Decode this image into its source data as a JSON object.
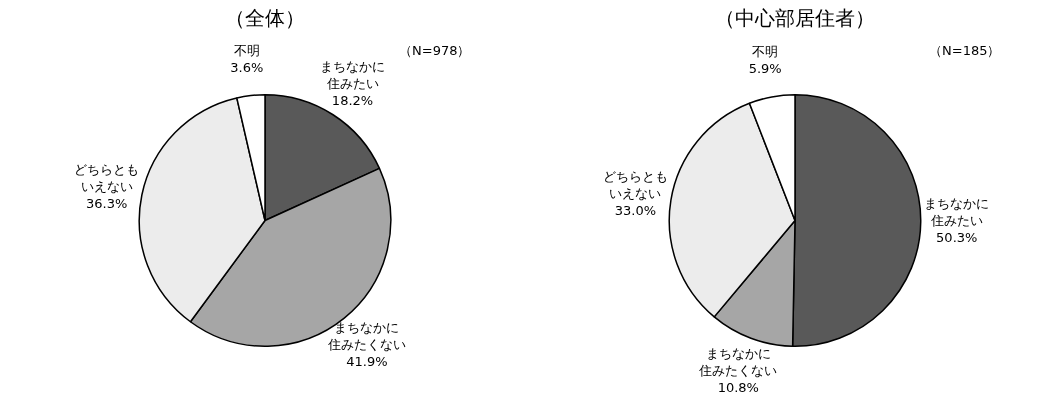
{
  "chart_data": [
    {
      "type": "pie",
      "title": "（全体）",
      "annotations": [
        "（N=978）"
      ],
      "categories": [
        "まちなかに住みたい",
        "まちなかに住みたくない",
        "どちらともいえない",
        "不明"
      ],
      "values": [
        18.2,
        41.9,
        36.3,
        3.6
      ],
      "value_labels": [
        "18.2%",
        "41.9%",
        "36.3%",
        "3.6%"
      ],
      "colors": [
        "#595959",
        "#a6a6a6",
        "#ececec",
        "#ffffff"
      ]
    },
    {
      "type": "pie",
      "title": "（中心部居住者）",
      "annotations": [
        "（N=185）"
      ],
      "categories": [
        "まちなかに住みたい",
        "まちなかに住みたくない",
        "どちらともいえない",
        "不明"
      ],
      "values": [
        50.3,
        10.8,
        33.0,
        5.9
      ],
      "value_labels": [
        "50.3%",
        "10.8%",
        "33.0%",
        "5.9%"
      ],
      "colors": [
        "#595959",
        "#a6a6a6",
        "#ececec",
        "#ffffff"
      ]
    }
  ]
}
